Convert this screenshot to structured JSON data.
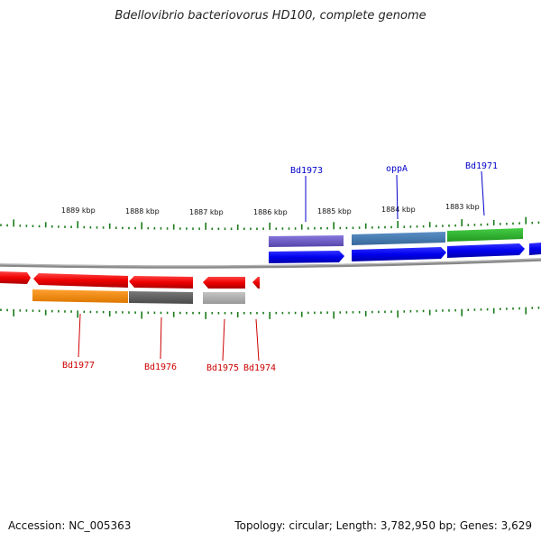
{
  "title": "Bdellovibrio bacteriovorus HD100, complete genome",
  "footer": {
    "accession": "Accession: NC_005363",
    "stats": "Topology: circular; Length: 3,782,950 bp; Genes: 3,629"
  },
  "scale": {
    "ticks": [
      {
        "label": "1889 kbp"
      },
      {
        "label": "1888 kbp"
      },
      {
        "label": "1887 kbp"
      },
      {
        "label": "1886 kbp"
      },
      {
        "label": "1885 kbp"
      },
      {
        "label": "1884 kbp"
      },
      {
        "label": "1883 kbp"
      }
    ]
  },
  "genes": {
    "top": [
      {
        "label": "Bd1973",
        "color": "#0000ff"
      },
      {
        "label": "oppA",
        "color": "#0000ff"
      },
      {
        "label": "Bd1971",
        "color": "#0000ff"
      }
    ],
    "bottom": [
      {
        "label": "Bd1977",
        "color": "#cc0000"
      },
      {
        "label": "Bd1976",
        "color": "#cc0000"
      },
      {
        "label": "Bd1975",
        "color": "#cc0000"
      },
      {
        "label": "Bd1974",
        "color": "#cc0000"
      }
    ]
  },
  "colors": {
    "forward_cds": "#0000ee",
    "reverse_cds": "#ff0000",
    "backbone": "#888888",
    "ticks": "#1a7a1a",
    "cog_purple": "#7766cc",
    "cog_steel": "#4a7fb5",
    "cog_green": "#33bb33",
    "cog_orange": "#ff8c00",
    "cog_darkgray": "#666666",
    "cog_lightgray": "#aaaaaa"
  }
}
